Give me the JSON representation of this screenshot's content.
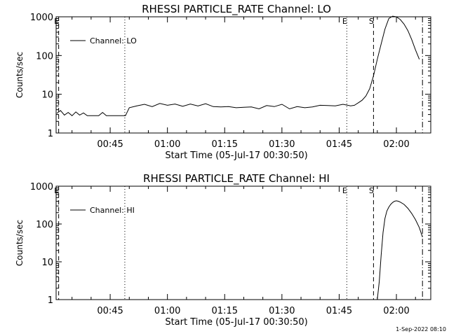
{
  "footer_stamp": "1-Sep-2022 08:10",
  "chart_data": [
    {
      "type": "line",
      "title": "RHESSI PARTICLE_RATE Channel: LO",
      "xlabel": "Start Time (05-Jul-17 00:30:50)",
      "ylabel": "Counts/sec",
      "ylog": true,
      "ylim": [
        1,
        1000
      ],
      "xlim": [
        "00:30:50",
        "02:09:00"
      ],
      "xticks": [
        "00:45",
        "01:00",
        "01:15",
        "01:30",
        "01:45",
        "02:00"
      ],
      "yticks": [
        "1",
        "10",
        "100",
        "1000"
      ],
      "legend": "top-left",
      "series": [
        {
          "name": "Channel: LO",
          "x": [
            "00:31",
            "00:32",
            "00:33",
            "00:34",
            "00:35",
            "00:36",
            "00:37",
            "00:38",
            "00:39",
            "00:40",
            "00:41",
            "00:42",
            "00:43",
            "00:44",
            "00:45",
            "00:46",
            "00:47",
            "00:48",
            "00:49",
            "00:50",
            "00:52",
            "00:54",
            "00:56",
            "00:58",
            "01:00",
            "01:02",
            "01:04",
            "01:06",
            "01:08",
            "01:10",
            "01:12",
            "01:14",
            "01:16",
            "01:18",
            "01:20",
            "01:22",
            "01:24",
            "01:26",
            "01:28",
            "01:30",
            "01:32",
            "01:34",
            "01:36",
            "01:38",
            "01:40",
            "01:42",
            "01:44",
            "01:46",
            "01:48",
            "01:49",
            "01:50",
            "01:51",
            "01:52",
            "01:53",
            "01:54",
            "01:55",
            "01:56",
            "01:57",
            "01:58",
            "01:59",
            "02:00",
            "02:01",
            "02:02",
            "02:03",
            "02:04",
            "02:05",
            "02:06"
          ],
          "values": [
            3.2,
            3.8,
            2.9,
            3.4,
            2.8,
            3.5,
            2.9,
            3.3,
            2.8,
            2.8,
            2.8,
            2.8,
            3.4,
            2.8,
            2.8,
            2.8,
            2.8,
            2.8,
            2.8,
            4.5,
            5.0,
            5.5,
            4.8,
            5.8,
            5.2,
            5.6,
            4.9,
            5.6,
            5.0,
            5.7,
            4.8,
            4.7,
            4.8,
            4.5,
            4.6,
            4.7,
            4.2,
            5.1,
            4.8,
            5.5,
            4.2,
            4.8,
            4.5,
            4.7,
            5.2,
            5.1,
            5.0,
            5.5,
            5.0,
            5.2,
            6.0,
            7,
            9,
            14,
            30,
            80,
            200,
            480,
            900,
            1040,
            1000,
            850,
            650,
            440,
            260,
            140,
            80
          ]
        }
      ],
      "markers": [
        {
          "label": "E",
          "at": "00:31:30",
          "style": "dashed"
        },
        {
          "label": "",
          "at": "00:48:50",
          "style": "dotted"
        },
        {
          "label": "E",
          "at": "01:47:00",
          "style": "dotted"
        },
        {
          "label": "S",
          "at": "01:54:00",
          "style": "dashed"
        },
        {
          "label": "",
          "at": "02:06:50",
          "style": "dash-dot"
        }
      ]
    },
    {
      "type": "line",
      "title": "RHESSI PARTICLE_RATE Channel: HI",
      "xlabel": "Start Time (05-Jul-17 00:30:50)",
      "ylabel": "Counts/sec",
      "ylog": true,
      "ylim": [
        1,
        1000
      ],
      "xlim": [
        "00:30:50",
        "02:09:00"
      ],
      "xticks": [
        "00:45",
        "01:00",
        "01:15",
        "01:30",
        "01:45",
        "02:00"
      ],
      "yticks": [
        "1",
        "10",
        "100",
        "1000"
      ],
      "legend": "top-left",
      "series": [
        {
          "name": "Channel: HI",
          "x": [
            "01:55:00",
            "01:55:30",
            "01:56:00",
            "01:56:30",
            "01:57:00",
            "01:57:30",
            "01:58:00",
            "01:58:30",
            "01:59:00",
            "01:59:30",
            "02:00:00",
            "02:00:30",
            "02:01:00",
            "02:02:00",
            "02:03:00",
            "02:04:00",
            "02:05:00",
            "02:06:00",
            "02:06:50"
          ],
          "values": [
            1,
            3,
            15,
            60,
            140,
            220,
            280,
            330,
            370,
            400,
            410,
            400,
            380,
            330,
            260,
            190,
            130,
            80,
            45
          ]
        }
      ],
      "markers": [
        {
          "label": "E",
          "at": "00:31:30",
          "style": "dashed"
        },
        {
          "label": "",
          "at": "00:48:50",
          "style": "dotted"
        },
        {
          "label": "E",
          "at": "01:47:00",
          "style": "dotted"
        },
        {
          "label": "S",
          "at": "01:54:00",
          "style": "dashed"
        },
        {
          "label": "",
          "at": "02:06:50",
          "style": "dash-dot"
        }
      ]
    }
  ]
}
